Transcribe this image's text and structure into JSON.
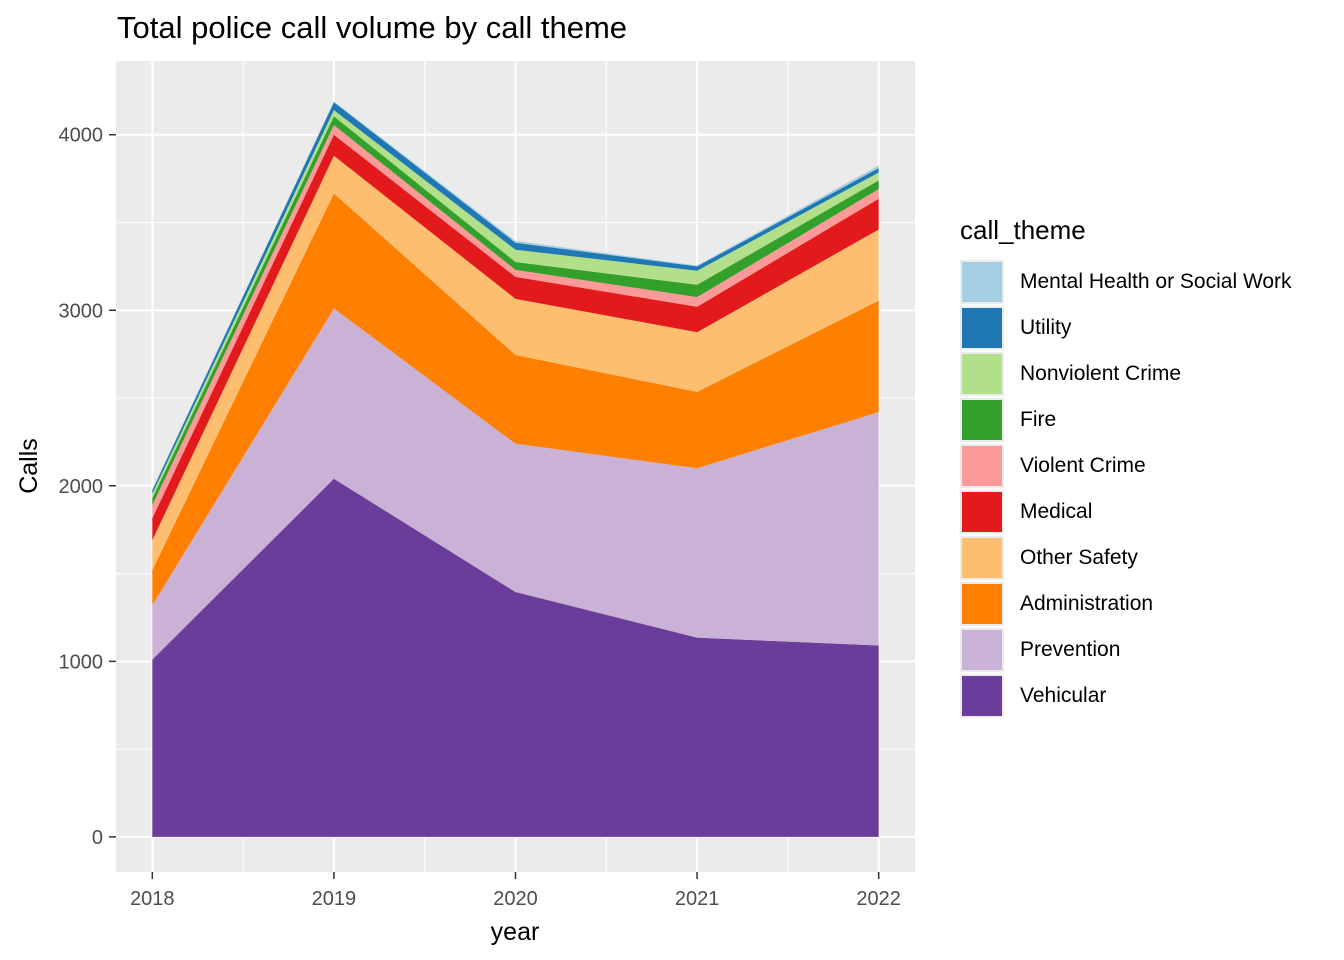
{
  "chart_data": {
    "type": "area",
    "stacked": true,
    "title": "Total police call volume by call theme",
    "xlabel": "year",
    "ylabel": "Calls",
    "x": [
      2018,
      2019,
      2020,
      2021,
      2022
    ],
    "x_ticks": [
      "2018",
      "2019",
      "2020",
      "2021",
      "2022"
    ],
    "xlim": [
      2017.8,
      2022.2
    ],
    "ylim": [
      -200,
      4420
    ],
    "y_ticks": [
      0,
      1000,
      2000,
      3000,
      4000
    ],
    "y_tick_labels": [
      "0",
      "1000",
      "2000",
      "3000",
      "4000"
    ],
    "grid": true,
    "legend_title": "call_theme",
    "legend_position": "right",
    "series": [
      {
        "name": "Vehicular",
        "color": "#6a3d9a",
        "values": [
          1010,
          2040,
          1395,
          1135,
          1090
        ]
      },
      {
        "name": "Prevention",
        "color": "#cab2d6",
        "values": [
          310,
          970,
          845,
          965,
          1330
        ]
      },
      {
        "name": "Administration",
        "color": "#ff7f00",
        "values": [
          200,
          655,
          505,
          435,
          635
        ]
      },
      {
        "name": "Other Safety",
        "color": "#fdbf6f",
        "values": [
          170,
          215,
          320,
          340,
          405
        ]
      },
      {
        "name": "Medical",
        "color": "#e31a1c",
        "values": [
          125,
          120,
          125,
          145,
          175
        ]
      },
      {
        "name": "Violent Crime",
        "color": "#fb9a99",
        "values": [
          75,
          55,
          40,
          55,
          55
        ]
      },
      {
        "name": "Fire",
        "color": "#33a02c",
        "values": [
          40,
          50,
          45,
          70,
          50
        ]
      },
      {
        "name": "Nonviolent Crime",
        "color": "#b2df8a",
        "values": [
          25,
          35,
          70,
          80,
          45
        ]
      },
      {
        "name": "Utility",
        "color": "#1f78b4",
        "values": [
          20,
          45,
          40,
          25,
          25
        ]
      },
      {
        "name": "Mental Health or Social Work",
        "color": "#a6cee3",
        "values": [
          5,
          5,
          10,
          5,
          15
        ]
      }
    ]
  }
}
